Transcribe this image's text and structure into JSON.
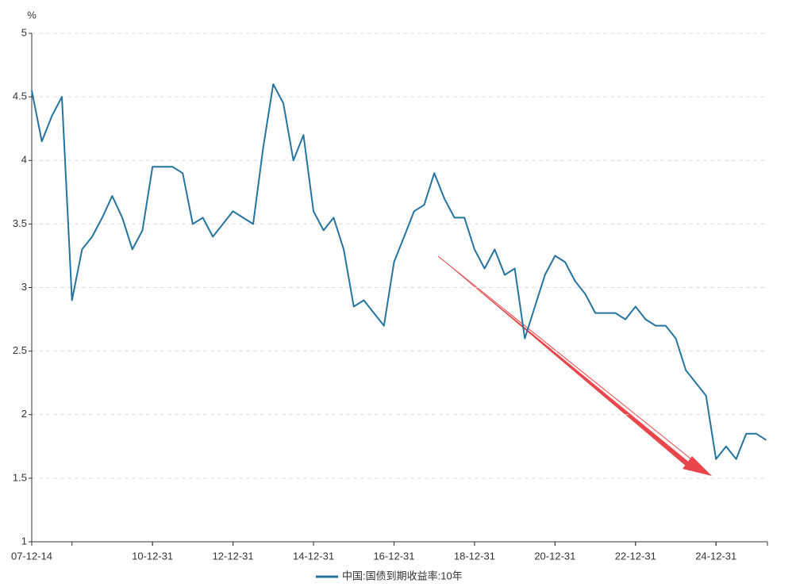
{
  "chart_data": {
    "type": "line",
    "y_unit": "%",
    "categories": [
      "07-12-14",
      null,
      null,
      null,
      null,
      null,
      null,
      null,
      null,
      null,
      null,
      null,
      "10-12-31",
      null,
      null,
      null,
      null,
      null,
      null,
      null,
      "12-12-31",
      null,
      null,
      null,
      null,
      null,
      null,
      null,
      "14-12-31",
      null,
      null,
      null,
      null,
      null,
      null,
      null,
      "16-12-31",
      null,
      null,
      null,
      null,
      null,
      null,
      null,
      "18-12-31",
      null,
      null,
      null,
      null,
      null,
      null,
      null,
      "20-12-31",
      null,
      null,
      null,
      null,
      null,
      null,
      null,
      "22-12-31",
      null,
      null,
      null,
      null,
      null,
      null,
      null,
      "24-12-31",
      null,
      null,
      null,
      null,
      null
    ],
    "series": [
      {
        "name": "中国:国债到期收益率:10年",
        "color": "#2574a0",
        "values": [
          4.55,
          4.15,
          4.35,
          4.5,
          2.9,
          3.3,
          3.4,
          3.55,
          3.72,
          3.55,
          3.3,
          3.45,
          3.95,
          3.95,
          3.95,
          3.9,
          3.5,
          3.55,
          3.4,
          3.5,
          3.6,
          3.55,
          3.5,
          4.1,
          4.6,
          4.45,
          4.0,
          4.2,
          3.6,
          3.45,
          3.55,
          3.3,
          2.85,
          2.9,
          2.8,
          2.7,
          3.2,
          3.4,
          3.6,
          3.65,
          3.9,
          3.7,
          3.55,
          3.55,
          3.3,
          3.15,
          3.3,
          3.1,
          3.15,
          2.6,
          2.85,
          3.1,
          3.25,
          3.2,
          3.05,
          2.95,
          2.8,
          2.8,
          2.8,
          2.75,
          2.85,
          2.75,
          2.7,
          2.7,
          2.6,
          2.35,
          2.25,
          2.15,
          1.65,
          1.75,
          1.65,
          1.85,
          1.85,
          1.8
        ]
      }
    ],
    "ylim": [
      1,
      5
    ],
    "yticks": [
      1,
      1.5,
      2,
      2.5,
      3,
      3.5,
      4,
      4.5,
      5
    ],
    "grid": true
  }
}
